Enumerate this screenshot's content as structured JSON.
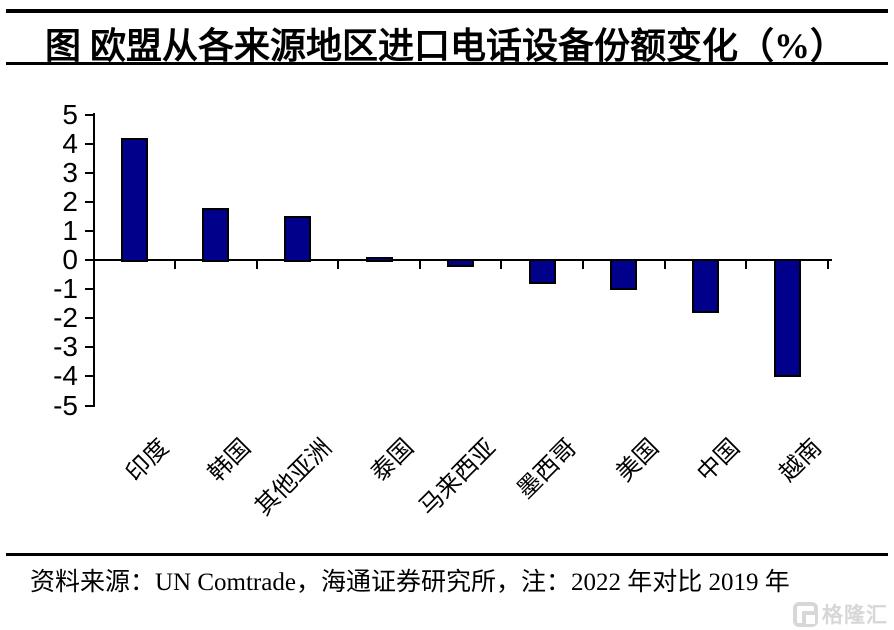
{
  "title": "图 欧盟从各来源地区进口电话设备份额变化（%）",
  "source_note": "资料来源：UN Comtrade，海通证券研究所，注：2022 年对比 2019 年",
  "watermark": {
    "icon": "gelonghui-logo",
    "text": "格隆汇"
  },
  "colors": {
    "bar_fill": "#00008B",
    "bar_border": "#000000",
    "axis": "#000000",
    "text": "#000000",
    "watermark": "#D7D7D7",
    "background": "#FFFFFF"
  },
  "chart_data": {
    "type": "bar",
    "title": "欧盟从各来源地区进口电话设备份额变化（%）",
    "categories": [
      "印度",
      "韩国",
      "其他亚洲",
      "泰国",
      "马来西亚",
      "墨西哥",
      "美国",
      "中国",
      "越南"
    ],
    "values": [
      4.2,
      1.8,
      1.5,
      0.1,
      -0.2,
      -0.8,
      -1.0,
      -1.8,
      -4.0
    ],
    "xlabel": "",
    "ylabel": "",
    "ylim": [
      -5,
      5
    ],
    "yticks": [
      5,
      4,
      3,
      2,
      1,
      0,
      -1,
      -2,
      -3,
      -4,
      -5
    ],
    "grid": false,
    "legend": null,
    "note": "2022 年对比 2019 年"
  }
}
